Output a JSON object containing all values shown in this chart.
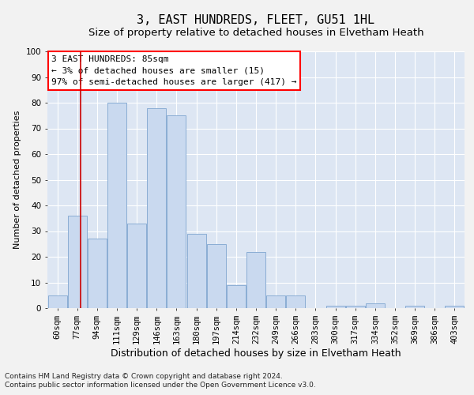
{
  "title1": "3, EAST HUNDREDS, FLEET, GU51 1HL",
  "title2": "Size of property relative to detached houses in Elvetham Heath",
  "xlabel": "Distribution of detached houses by size in Elvetham Heath",
  "ylabel": "Number of detached properties",
  "bar_labels": [
    "60sqm",
    "77sqm",
    "94sqm",
    "111sqm",
    "129sqm",
    "146sqm",
    "163sqm",
    "180sqm",
    "197sqm",
    "214sqm",
    "232sqm",
    "249sqm",
    "266sqm",
    "283sqm",
    "300sqm",
    "317sqm",
    "334sqm",
    "352sqm",
    "369sqm",
    "386sqm",
    "403sqm"
  ],
  "bar_values": [
    5,
    36,
    27,
    80,
    33,
    78,
    75,
    29,
    25,
    9,
    22,
    5,
    5,
    0,
    1,
    1,
    2,
    0,
    1,
    0,
    1
  ],
  "bar_color": "#c9d9ef",
  "bar_edge_color": "#8aadd4",
  "background_color": "#dde6f3",
  "grid_color": "#ffffff",
  "annotation_box_text": "3 EAST HUNDREDS: 85sqm\n← 3% of detached houses are smaller (15)\n97% of semi-detached houses are larger (417) →",
  "red_line_x": 1.18,
  "red_line_color": "#cc0000",
  "ylim": [
    0,
    100
  ],
  "yticks": [
    0,
    10,
    20,
    30,
    40,
    50,
    60,
    70,
    80,
    90,
    100
  ],
  "footnote1": "Contains HM Land Registry data © Crown copyright and database right 2024.",
  "footnote2": "Contains public sector information licensed under the Open Government Licence v3.0.",
  "title1_fontsize": 11,
  "title2_fontsize": 9.5,
  "xlabel_fontsize": 9,
  "ylabel_fontsize": 8,
  "tick_fontsize": 7.5,
  "annotation_fontsize": 8,
  "footnote_fontsize": 6.5
}
